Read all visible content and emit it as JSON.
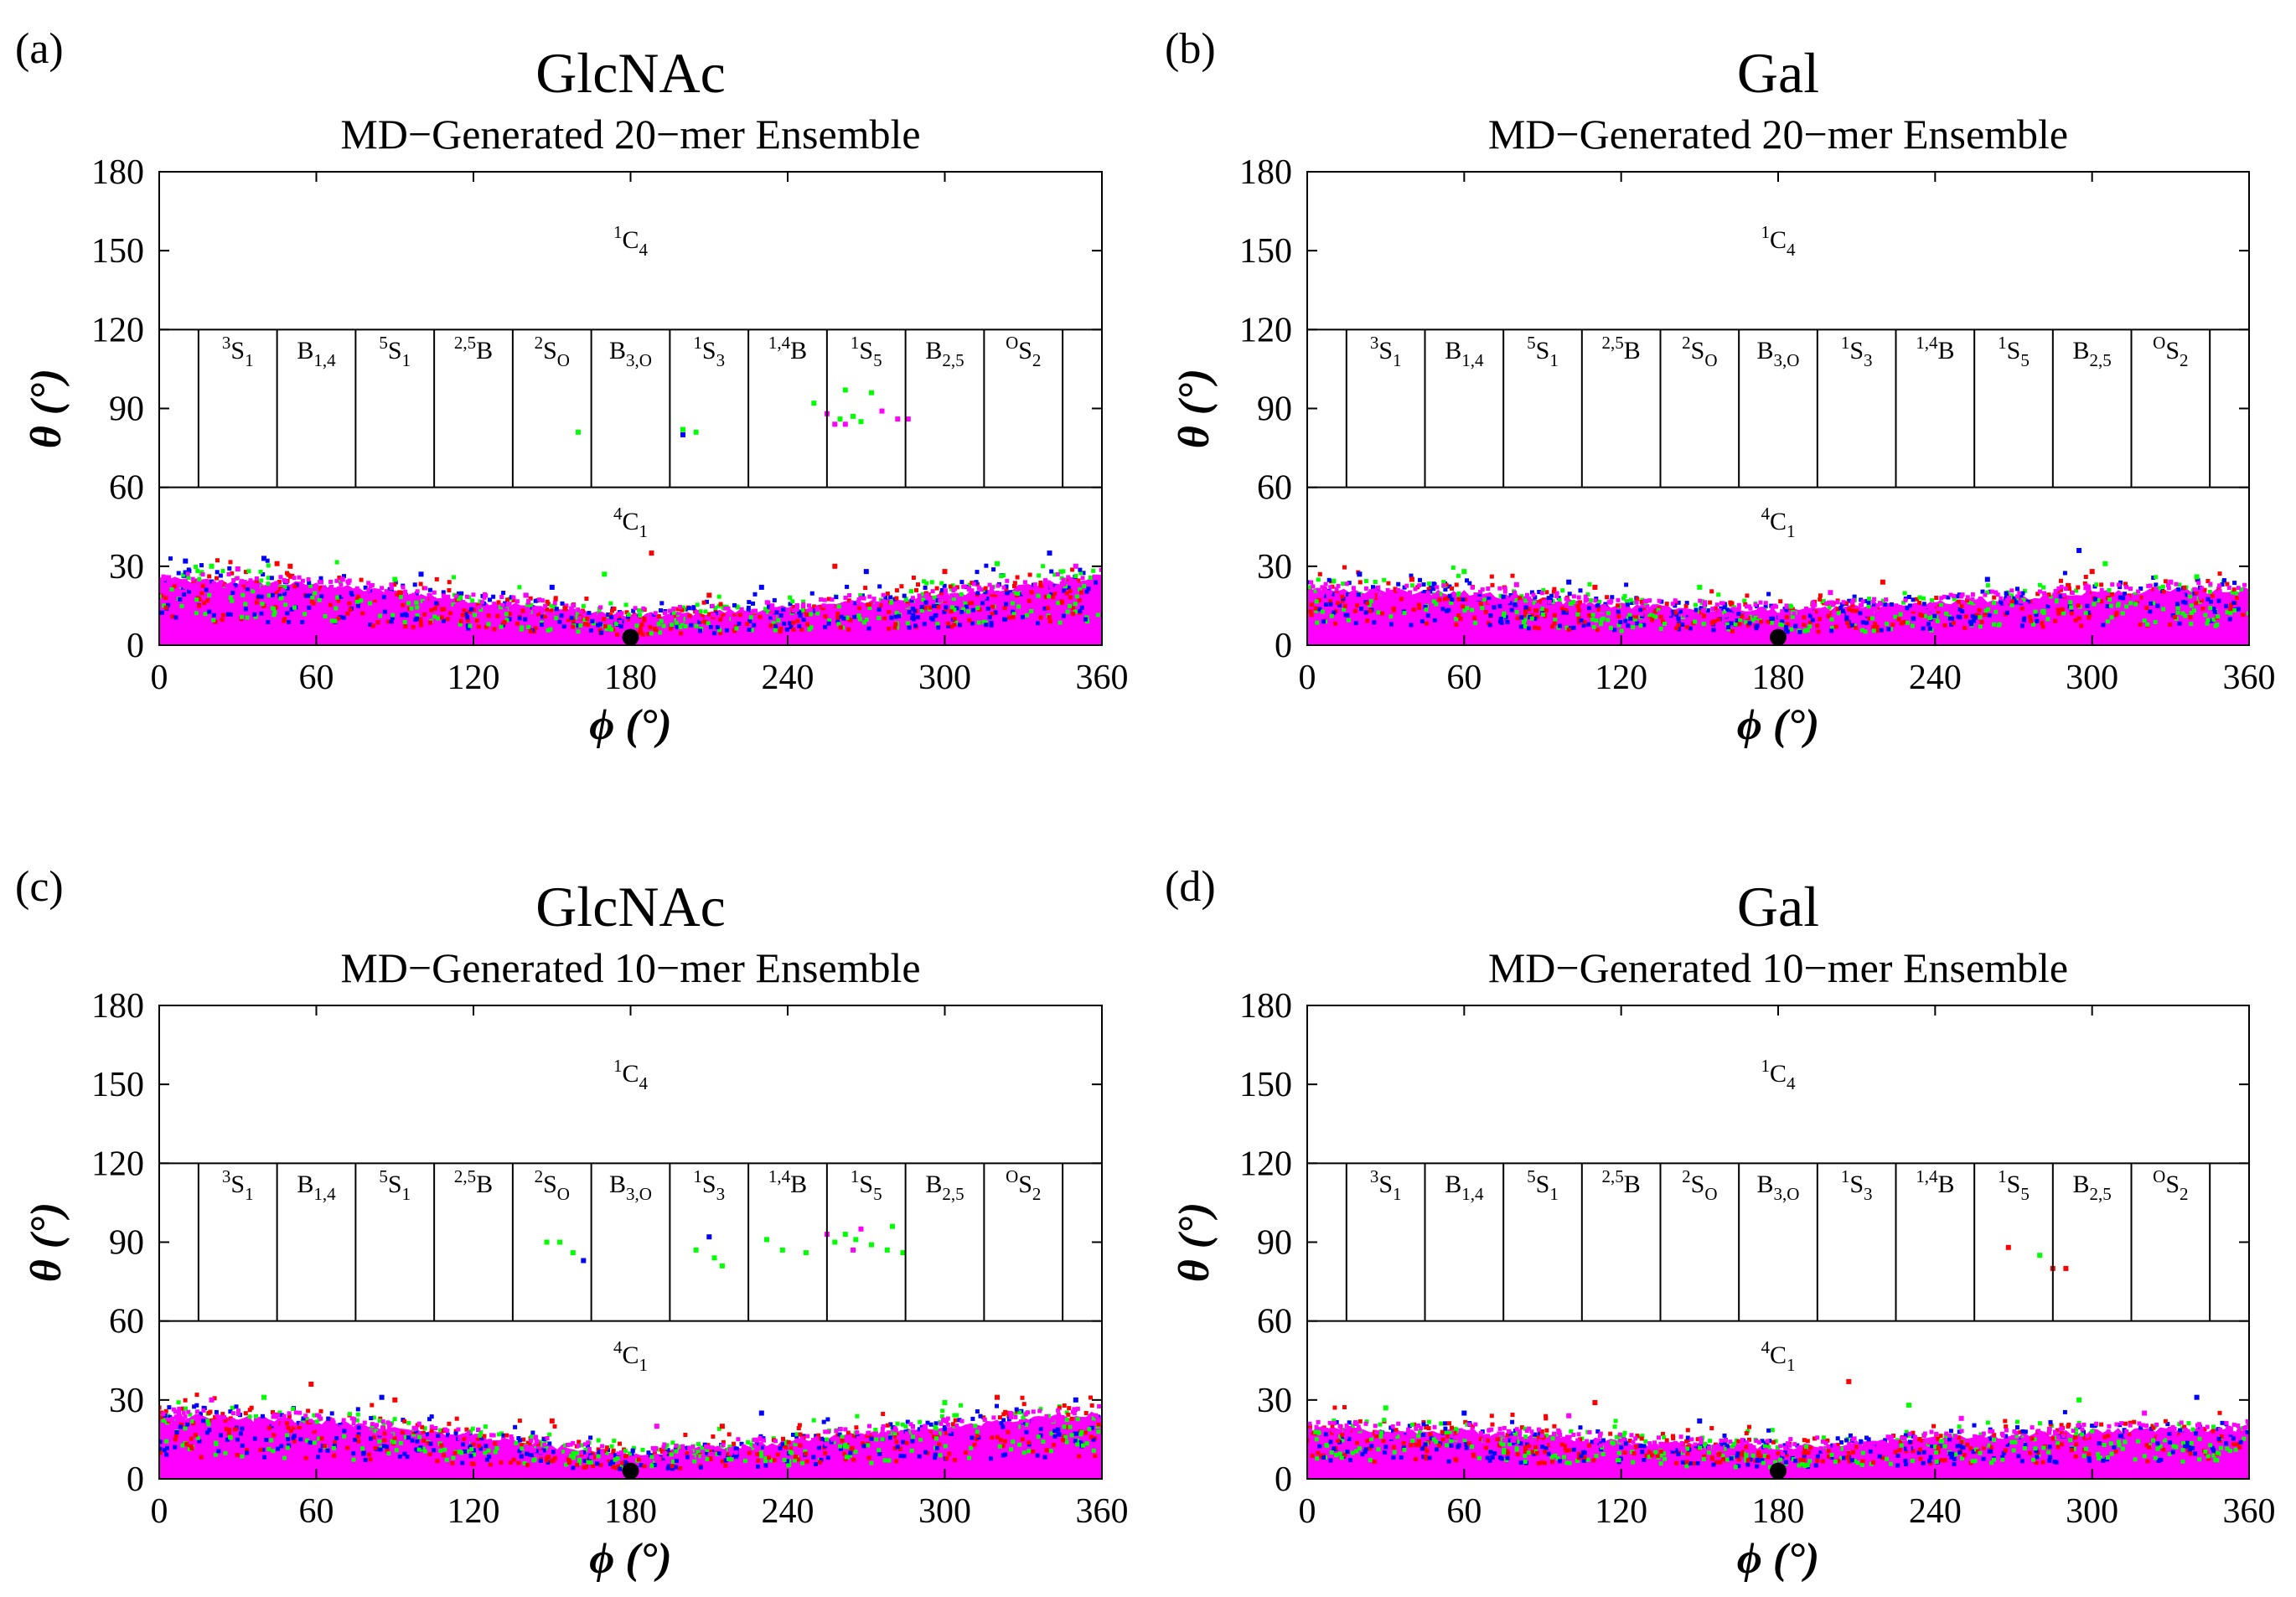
{
  "chart_data": [
    {
      "type": "scatter",
      "panel_label": "(a)",
      "title": "GlcNAc",
      "subtitle": "MD−Generated 20−mer Ensemble",
      "xlabel": "ϕ (°)",
      "ylabel": "θ (°)",
      "xlim": [
        0,
        360
      ],
      "ylim": [
        0,
        180
      ],
      "xticks": [
        0,
        60,
        120,
        180,
        240,
        300,
        360
      ],
      "yticks": [
        0,
        30,
        60,
        90,
        120,
        150,
        180
      ],
      "band_ceiling": [
        [
          0,
          25
        ],
        [
          60,
          23
        ],
        [
          120,
          17
        ],
        [
          180,
          11
        ],
        [
          240,
          14
        ],
        [
          300,
          19
        ],
        [
          360,
          26
        ]
      ],
      "series": [
        {
          "color": "#ff0000",
          "points": [
            [
              45,
              31
            ],
            [
              50,
              30
            ],
            [
              155,
              14
            ],
            [
              188,
              35
            ],
            [
              210,
              19
            ],
            [
              258,
              30
            ],
            [
              300,
              28
            ]
          ]
        },
        {
          "color": "#00ff00",
          "points": [
            [
              20,
              30
            ],
            [
              90,
              25
            ],
            [
              160,
              81
            ],
            [
              170,
              27
            ],
            [
              200,
              82
            ],
            [
              205,
              81
            ],
            [
              250,
              92
            ],
            [
              262,
              97
            ],
            [
              265,
              87
            ],
            [
              268,
              85
            ],
            [
              260,
              86
            ],
            [
              272,
              96
            ],
            [
              320,
              31
            ]
          ]
        },
        {
          "color": "#0000ff",
          "points": [
            [
              10,
              32
            ],
            [
              40,
              33
            ],
            [
              100,
              27
            ],
            [
              150,
              22
            ],
            [
              200,
              80
            ],
            [
              230,
              22
            ],
            [
              270,
              28
            ],
            [
              340,
              35
            ]
          ]
        },
        {
          "color": "#ff00ff",
          "points": [
            [
              30,
              29
            ],
            [
              70,
              25
            ],
            [
              140,
              19
            ],
            [
              255,
              88
            ],
            [
              258,
              84
            ],
            [
              262,
              84
            ],
            [
              276,
              89
            ],
            [
              282,
              86
            ],
            [
              286,
              86
            ],
            [
              350,
              30
            ]
          ]
        }
      ],
      "reference_point": {
        "x": 180,
        "y": 3,
        "color": "#000000"
      }
    },
    {
      "type": "scatter",
      "panel_label": "(b)",
      "title": "Gal",
      "subtitle": "MD−Generated 20−mer Ensemble",
      "xlabel": "ϕ (°)",
      "ylabel": "θ (°)",
      "xlim": [
        0,
        360
      ],
      "ylim": [
        0,
        180
      ],
      "xticks": [
        0,
        60,
        120,
        180,
        240,
        300,
        360
      ],
      "yticks": [
        0,
        30,
        60,
        90,
        120,
        150,
        180
      ],
      "band_ceiling": [
        [
          0,
          21
        ],
        [
          60,
          20
        ],
        [
          120,
          15
        ],
        [
          180,
          13
        ],
        [
          240,
          16
        ],
        [
          300,
          20
        ],
        [
          360,
          21
        ]
      ],
      "series": [
        {
          "color": "#ff0000",
          "points": [
            [
              40,
              25
            ],
            [
              110,
              22
            ],
            [
              220,
              24
            ],
            [
              300,
              28
            ]
          ]
        },
        {
          "color": "#00ff00",
          "points": [
            [
              60,
              28
            ],
            [
              150,
              22
            ],
            [
              305,
              31
            ],
            [
              340,
              26
            ]
          ]
        },
        {
          "color": "#0000ff",
          "points": [
            [
              20,
              27
            ],
            [
              100,
              24
            ],
            [
              260,
              25
            ],
            [
              295,
              36
            ]
          ]
        },
        {
          "color": "#ff00ff",
          "points": [
            [
              80,
              23
            ],
            [
              200,
              20
            ],
            [
              330,
              24
            ]
          ]
        }
      ],
      "reference_point": {
        "x": 180,
        "y": 3,
        "color": "#000000"
      }
    },
    {
      "type": "scatter",
      "panel_label": "(c)",
      "title": "GlcNAc",
      "subtitle": "MD−Generated 10−mer Ensemble",
      "xlabel": "ϕ (°)",
      "ylabel": "θ (°)",
      "xlim": [
        0,
        360
      ],
      "ylim": [
        0,
        180
      ],
      "xticks": [
        0,
        60,
        120,
        180,
        240,
        300,
        360
      ],
      "yticks": [
        0,
        30,
        60,
        90,
        120,
        150,
        180
      ],
      "band_ceiling": [
        [
          0,
          24
        ],
        [
          60,
          22
        ],
        [
          120,
          16
        ],
        [
          180,
          9
        ],
        [
          240,
          14
        ],
        [
          300,
          20
        ],
        [
          360,
          25
        ]
      ],
      "series": [
        {
          "color": "#ff0000",
          "points": [
            [
              58,
              36
            ],
            [
              90,
              30
            ],
            [
              150,
              22
            ],
            [
              215,
              20
            ],
            [
              320,
              31
            ]
          ]
        },
        {
          "color": "#00ff00",
          "points": [
            [
              148,
              90
            ],
            [
              153,
              90
            ],
            [
              158,
              86
            ],
            [
              205,
              87
            ],
            [
              212,
              84
            ],
            [
              215,
              81
            ],
            [
              232,
              91
            ],
            [
              238,
              87
            ],
            [
              247,
              86
            ],
            [
              258,
              90
            ],
            [
              262,
              93
            ],
            [
              266,
              91
            ],
            [
              272,
              89
            ],
            [
              278,
              87
            ],
            [
              280,
              96
            ],
            [
              284,
              86
            ],
            [
              40,
              31
            ],
            [
              300,
              29
            ]
          ]
        },
        {
          "color": "#0000ff",
          "points": [
            [
              162,
              83
            ],
            [
              210,
              92
            ],
            [
              85,
              31
            ],
            [
              230,
              25
            ],
            [
              350,
              30
            ]
          ]
        },
        {
          "color": "#ff00ff",
          "points": [
            [
              255,
              93
            ],
            [
              265,
              87
            ],
            [
              268,
              95
            ],
            [
              20,
              30
            ],
            [
              190,
              20
            ]
          ]
        }
      ],
      "reference_point": {
        "x": 180,
        "y": 3,
        "color": "#000000"
      }
    },
    {
      "type": "scatter",
      "panel_label": "(d)",
      "title": "Gal",
      "subtitle": "MD−Generated 10−mer Ensemble",
      "xlabel": "ϕ (°)",
      "ylabel": "θ (°)",
      "xlim": [
        0,
        360
      ],
      "ylim": [
        0,
        180
      ],
      "xticks": [
        0,
        60,
        120,
        180,
        240,
        300,
        360
      ],
      "yticks": [
        0,
        30,
        60,
        90,
        120,
        150,
        180
      ],
      "band_ceiling": [
        [
          0,
          19
        ],
        [
          60,
          18
        ],
        [
          120,
          14
        ],
        [
          180,
          12
        ],
        [
          240,
          15
        ],
        [
          300,
          18
        ],
        [
          360,
          19
        ]
      ],
      "series": [
        {
          "color": "#ff0000",
          "points": [
            [
              268,
              88
            ],
            [
              285,
              80
            ],
            [
              290,
              80
            ],
            [
              207,
              37
            ],
            [
              110,
              29
            ]
          ]
        },
        {
          "color": "#00ff00",
          "points": [
            [
              280,
              85
            ],
            [
              30,
              27
            ],
            [
              230,
              28
            ],
            [
              295,
              30
            ]
          ]
        },
        {
          "color": "#0000ff",
          "points": [
            [
              60,
              25
            ],
            [
              150,
              22
            ],
            [
              340,
              31
            ]
          ]
        },
        {
          "color": "#ff00ff",
          "points": [
            [
              100,
              24
            ],
            [
              250,
              23
            ],
            [
              320,
              25
            ]
          ]
        }
      ],
      "reference_point": {
        "x": 180,
        "y": 3,
        "color": "#000000"
      }
    }
  ],
  "zone_labels": {
    "top": {
      "sup": "1",
      "main": "C",
      "sub": "4"
    },
    "bottom": {
      "sup": "4",
      "main": "C",
      "sub": "1"
    },
    "middle": [
      {
        "sup": "3",
        "main": "S",
        "sub": "1"
      },
      {
        "sup": "",
        "main": "B",
        "sub": "1,4"
      },
      {
        "sup": "5",
        "main": "S",
        "sub": "1"
      },
      {
        "sup": "2,5",
        "main": "B",
        "sub": ""
      },
      {
        "sup": "2",
        "main": "S",
        "sub": "O"
      },
      {
        "sup": "",
        "main": "B",
        "sub": "3,O"
      },
      {
        "sup": "1",
        "main": "S",
        "sub": "3"
      },
      {
        "sup": "1,4",
        "main": "B",
        "sub": ""
      },
      {
        "sup": "1",
        "main": "S",
        "sub": "5"
      },
      {
        "sup": "",
        "main": "B",
        "sub": "2,5"
      },
      {
        "sup": "O",
        "main": "S",
        "sub": "2"
      }
    ],
    "boundaries_phi": [
      0,
      15,
      45,
      75,
      105,
      135,
      165,
      195,
      225,
      255,
      285,
      315,
      345,
      360
    ]
  },
  "colors": {
    "red": "#ff0000",
    "green": "#00ff00",
    "blue": "#0000ff",
    "magenta": "#ff00ff",
    "black": "#000000"
  }
}
